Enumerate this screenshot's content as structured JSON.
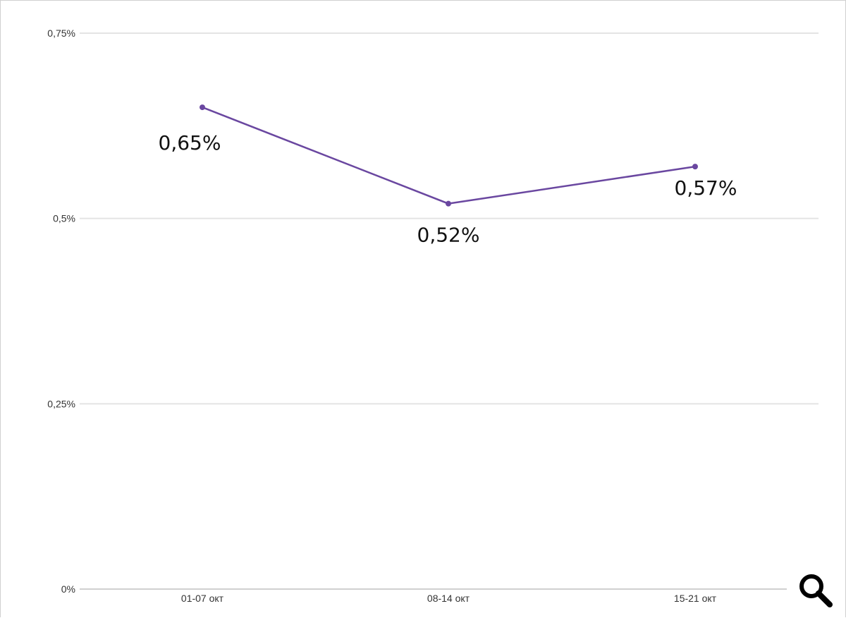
{
  "chart_data": {
    "type": "line",
    "categories": [
      "01-07 окт",
      "08-14 окт",
      "15-21 окт"
    ],
    "series": [
      {
        "values": [
          0.65,
          0.52,
          0.57
        ],
        "labels": [
          "0,65%",
          "0,52%",
          "0,57%"
        ]
      }
    ],
    "ylim": [
      0,
      0.75
    ],
    "yticks": [
      {
        "value": 0,
        "label": "0%"
      },
      {
        "value": 0.25,
        "label": "0,25%"
      },
      {
        "value": 0.5,
        "label": "0,5%"
      },
      {
        "value": 0.75,
        "label": "0,75%"
      }
    ],
    "grid": true,
    "colors": {
      "line": "#6a47a0",
      "grid": "#e4e4e4",
      "axis": "#d0d0d0"
    }
  },
  "toolbar": {
    "zoom_icon": "magnifier-icon"
  }
}
